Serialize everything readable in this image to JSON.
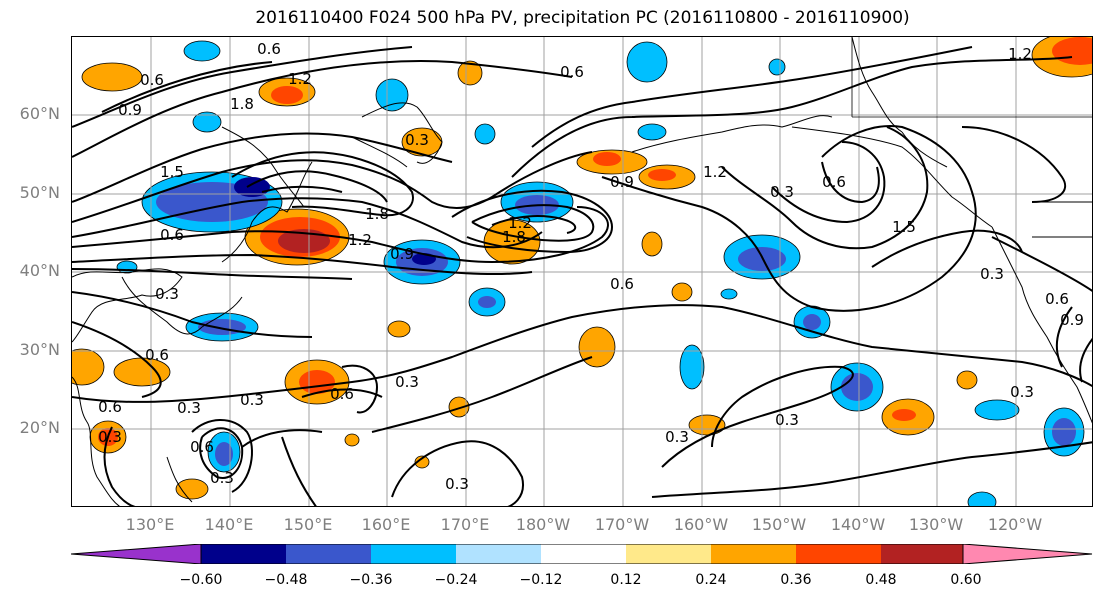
{
  "title": "2016110400 F024 500 hPa PV, precipitation PC (2016110800 - 2016110900)",
  "lat_labels": [
    "60°N",
    "50°N",
    "40°N",
    "30°N",
    "20°N"
  ],
  "lon_labels": [
    "130°E",
    "140°E",
    "150°E",
    "160°E",
    "170°E",
    "180°W",
    "170°W",
    "160°W",
    "150°W",
    "140°W",
    "130°W",
    "120°W"
  ],
  "colorbar": {
    "ticks": [
      "−0.60",
      "−0.48",
      "−0.36",
      "−0.24",
      "−0.12",
      "0.12",
      "0.24",
      "0.36",
      "0.48",
      "0.60"
    ],
    "colors": [
      "#9932cc",
      "#00008b",
      "#3a57cc",
      "#00bfff",
      "#b0e2ff",
      "#ffffff",
      "#ffe98a",
      "#ffa500",
      "#ff4500",
      "#b22222",
      "#ff88b0"
    ]
  },
  "contour_labels": [
    "0.6",
    "0.6",
    "0.9",
    "1.2",
    "1.8",
    "0.6",
    "1.2",
    "0.3",
    "1.5",
    "0.6",
    "1.8",
    "1.2",
    "0.9",
    "1.2",
    "1.8",
    "0.9",
    "1.2",
    "0.3",
    "0.6",
    "1.5",
    "0.3",
    "0.6",
    "0.3",
    "0.3",
    "0.6",
    "0.3",
    "0.3",
    "0.3",
    "0.3",
    "0.3",
    "0.6",
    "0.9",
    "0.6",
    "0.3",
    "0.6",
    "0.3",
    "0.6",
    "0.3"
  ]
}
